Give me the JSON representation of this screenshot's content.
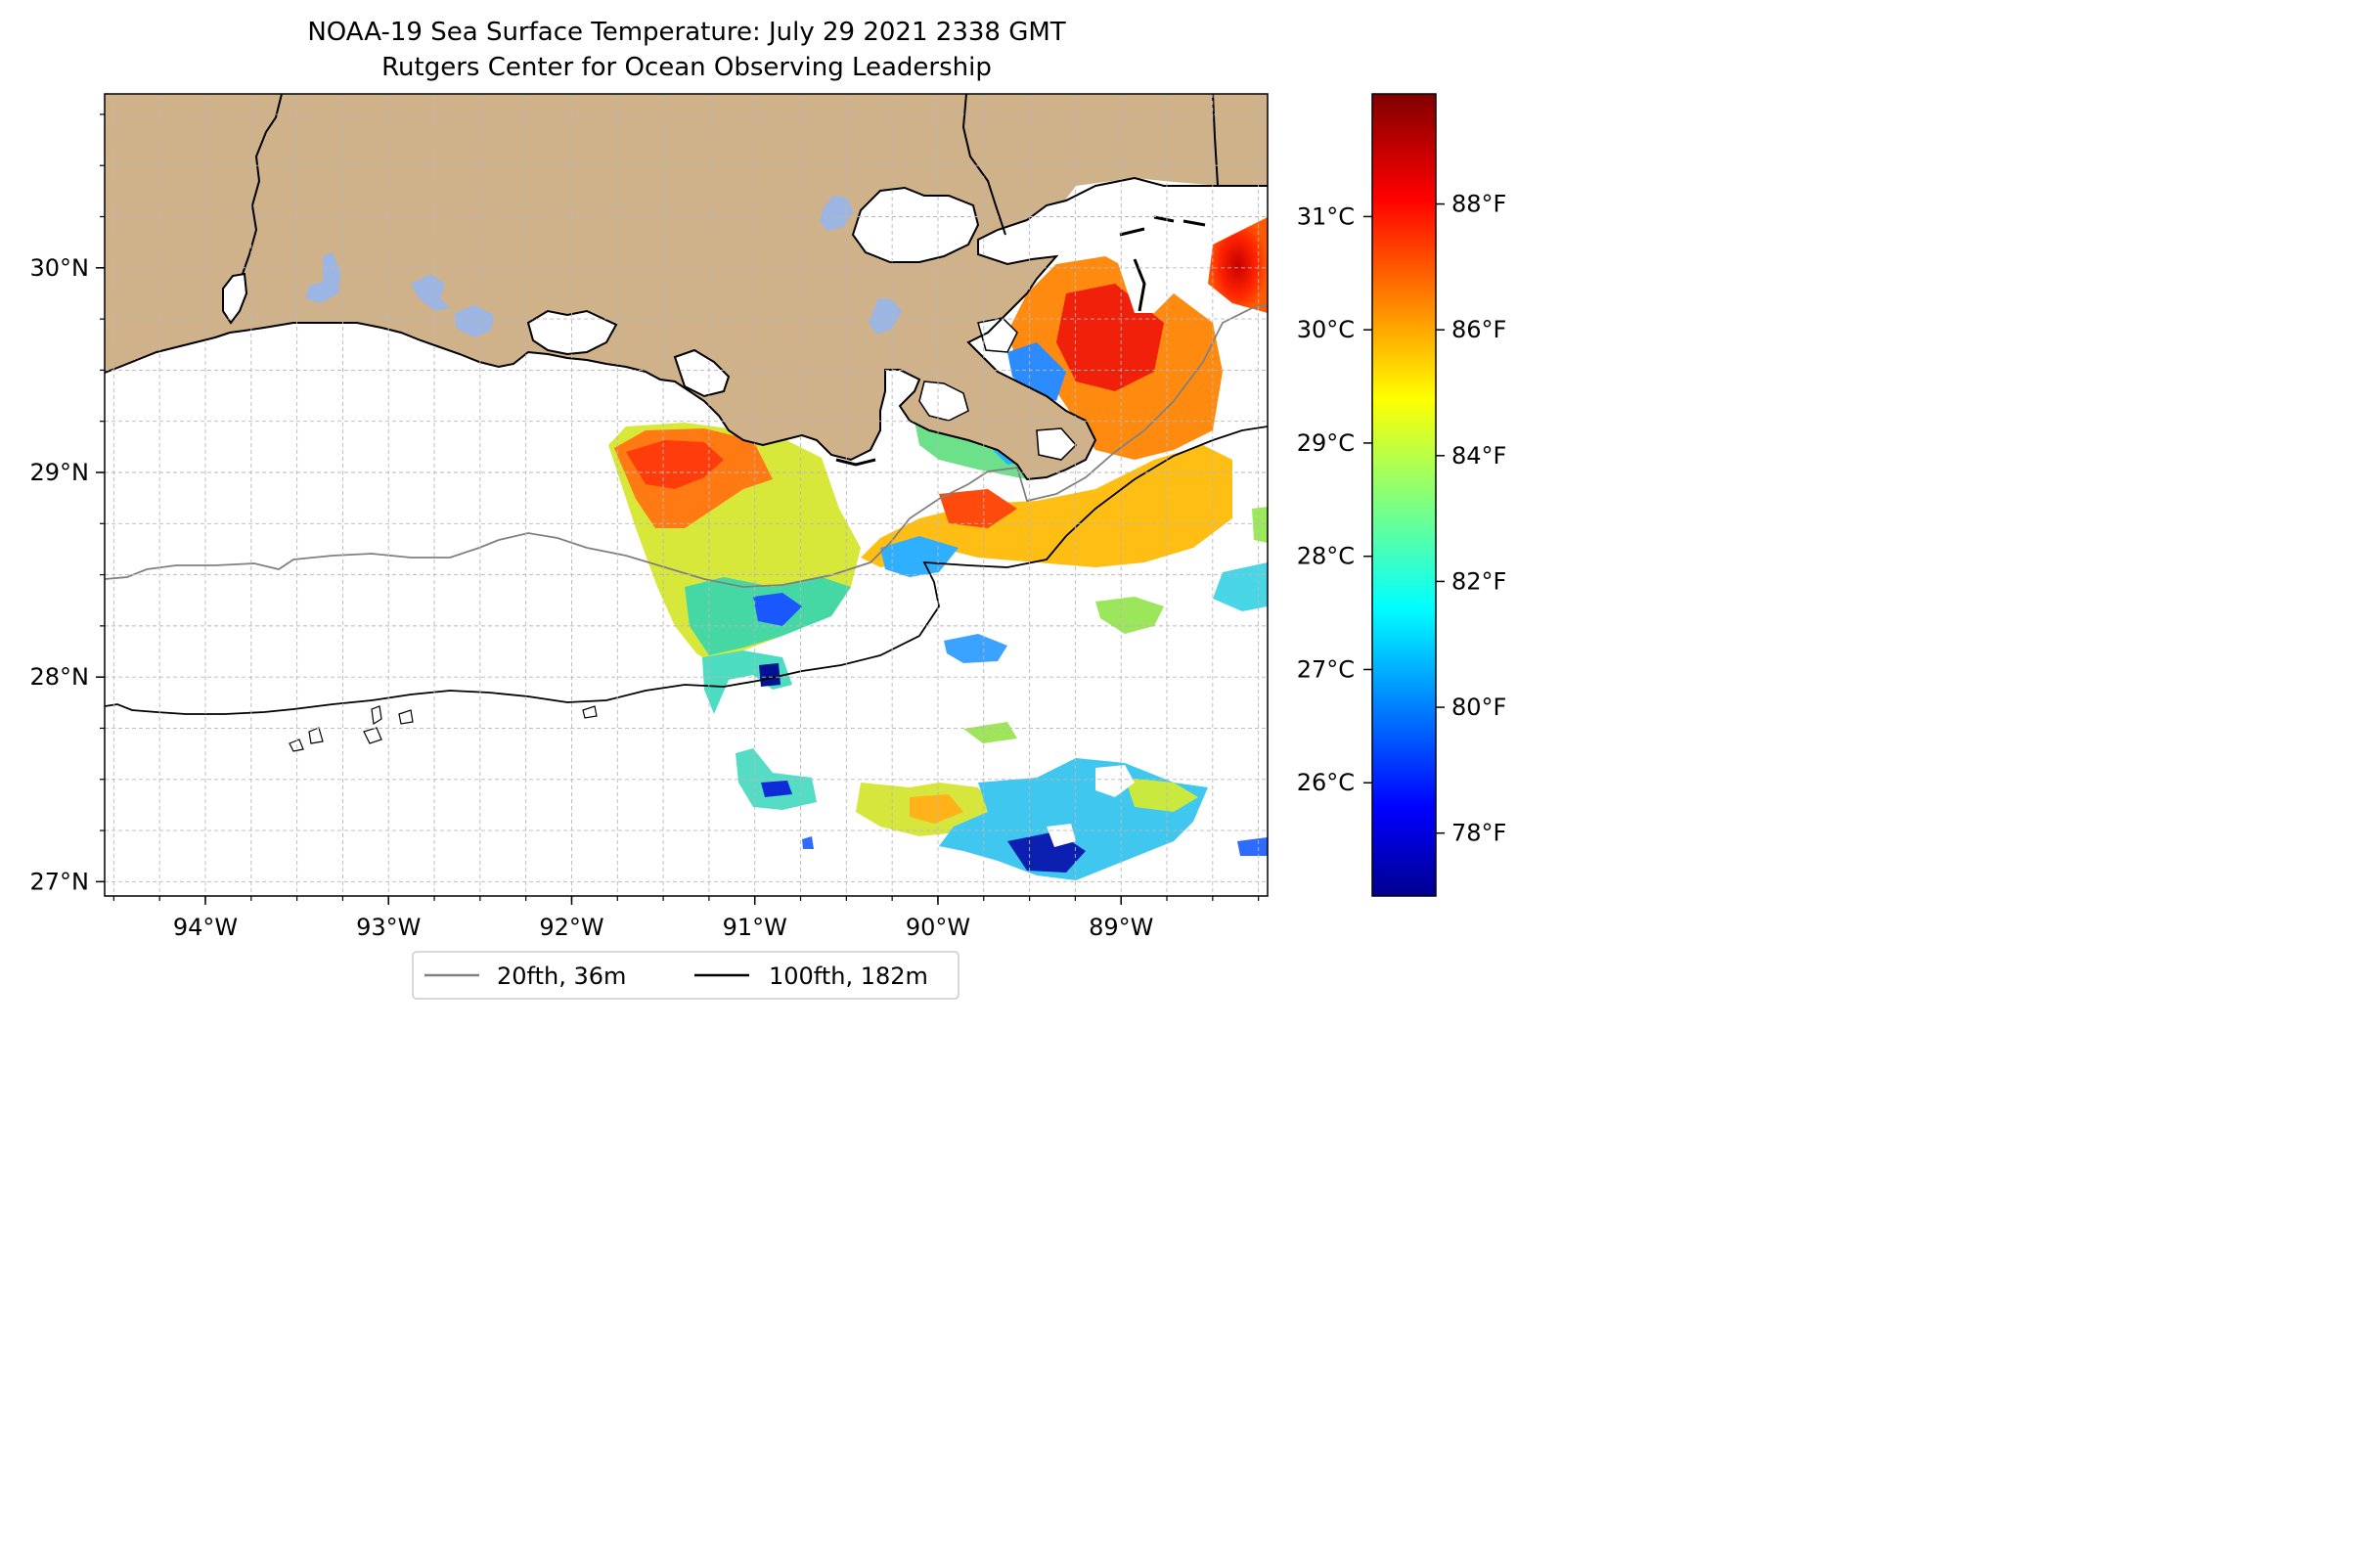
{
  "title": {
    "line1": "NOAA-19 Sea Surface Temperature: July 29 2021 2338 GMT",
    "line2": "Rutgers Center for Ocean Observing Leadership"
  },
  "map": {
    "extent": {
      "lon_min": -94.55,
      "lon_max": -88.2,
      "lat_min": 26.93,
      "lat_max": 30.85
    },
    "lon_ticks": [
      {
        "value": -94,
        "label": "94°W"
      },
      {
        "value": -93,
        "label": "93°W"
      },
      {
        "value": -92,
        "label": "92°W"
      },
      {
        "value": -91,
        "label": "91°W"
      },
      {
        "value": -90,
        "label": "90°W"
      },
      {
        "value": -89,
        "label": "89°W"
      }
    ],
    "lat_ticks": [
      {
        "value": 27,
        "label": "27°N"
      },
      {
        "value": 28,
        "label": "28°N"
      },
      {
        "value": 29,
        "label": "29°N"
      },
      {
        "value": 30,
        "label": "30°N"
      }
    ],
    "minor_gridline_step_deg": 0.25,
    "land_color": "#cfb18a",
    "lake_color": "#9cb5e3",
    "isobath_20_color": "#808080",
    "isobath_100_color": "#000000"
  },
  "colorbar": {
    "colormap": "jet",
    "celsius_ticks": [
      {
        "value": 26,
        "label": "26°C"
      },
      {
        "value": 27,
        "label": "27°C"
      },
      {
        "value": 28,
        "label": "28°C"
      },
      {
        "value": 29,
        "label": "29°C"
      },
      {
        "value": 30,
        "label": "30°C"
      },
      {
        "value": 31,
        "label": "31°C"
      }
    ],
    "fahrenheit_ticks": [
      {
        "value": 78,
        "label": "78°F"
      },
      {
        "value": 80,
        "label": "80°F"
      },
      {
        "value": 82,
        "label": "82°F"
      },
      {
        "value": 84,
        "label": "84°F"
      },
      {
        "value": 86,
        "label": "86°F"
      },
      {
        "value": 88,
        "label": "88°F"
      }
    ]
  },
  "legend": {
    "items": [
      {
        "label": "20fth, 36m",
        "color": "#808080"
      },
      {
        "label": "100fth, 182m",
        "color": "#000000"
      }
    ]
  }
}
